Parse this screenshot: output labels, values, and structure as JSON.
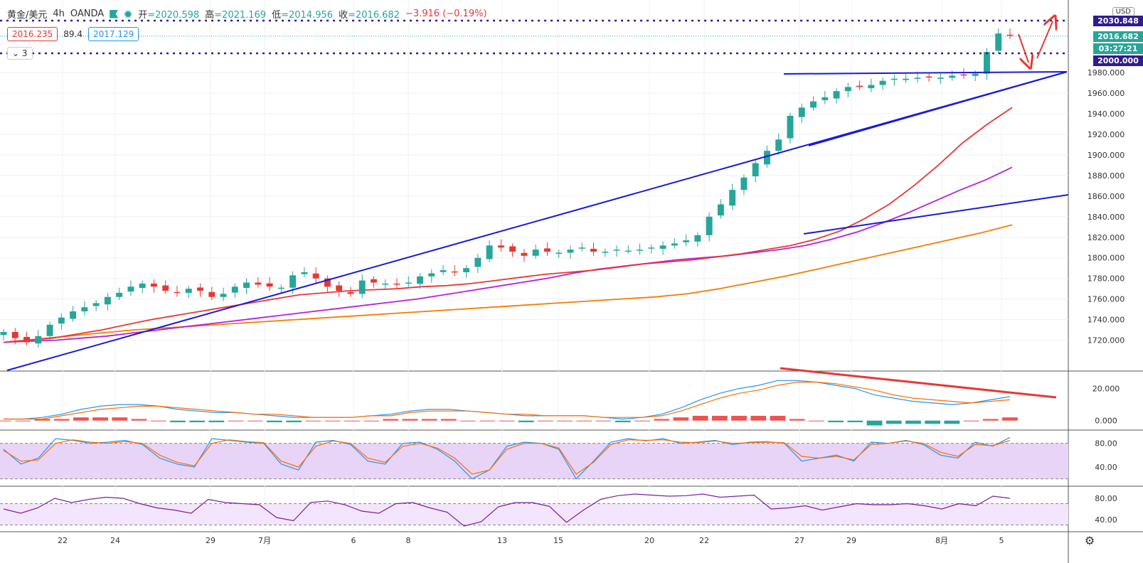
{
  "header": {
    "symbol": "黄金/美元",
    "interval": "4h",
    "broker": "OANDA",
    "open_label": "开",
    "open": "=2020.598",
    "high_label": "高",
    "high": "=2021.169",
    "low_label": "低",
    "low": "=2014.956",
    "close_label": "收",
    "close": "=2016.682",
    "change": "−3.916 (−0.19%)",
    "sell_price": "2016.235",
    "spread": "89.4",
    "buy_price": "2017.129",
    "indicator_count": "3"
  },
  "price_labels": {
    "currency": "USD",
    "top_level": "2030.848",
    "last_price": "2016.682",
    "countdown": "03:27:21",
    "bottom_level": "2000.000"
  },
  "colors": {
    "up": "#26a69a",
    "down": "#e53935",
    "trendline": "#1a1adb",
    "ma_fast": "#e53935",
    "ma_mid": "#b620e0",
    "ma_slow": "#f57c00",
    "level_line": "#311b92"
  },
  "chart_data": [
    {
      "type": "candlestick",
      "name_label": "黄金/美元 4h OANDA",
      "y_ticks": [
        1720,
        1740,
        1760,
        1780,
        1800,
        1820,
        1840,
        1860,
        1880,
        1900,
        1920,
        1940,
        1960,
        1980
      ],
      "y_tick_labels": [
        "1720.000",
        "1740.000",
        "1760.000",
        "1780.000",
        "1800.000",
        "1820.000",
        "1840.000",
        "1860.000",
        "1880.000",
        "1900.000",
        "1920.000",
        "1940.000",
        "1960.000",
        "1980.000"
      ],
      "ylim": [
        1690,
        2045
      ],
      "x_tick_labels": [
        "22",
        "24",
        "29",
        "7月",
        "6",
        "8",
        "13",
        "15",
        "20",
        "22",
        "27",
        "29",
        "8月",
        "5"
      ],
      "candles_close": [
        1728,
        1722,
        1718,
        1724,
        1735,
        1742,
        1748,
        1752,
        1756,
        1762,
        1766,
        1772,
        1775,
        1772,
        1768,
        1766,
        1770,
        1768,
        1762,
        1765,
        1772,
        1776,
        1774,
        1772,
        1771,
        1783,
        1786,
        1780,
        1772,
        1768,
        1765,
        1778,
        1776,
        1775,
        1774,
        1776,
        1782,
        1785,
        1788,
        1786,
        1790,
        1800,
        1812,
        1810,
        1806,
        1802,
        1808,
        1806,
        1805,
        1808,
        1810,
        1806,
        1806,
        1808,
        1807,
        1808,
        1810,
        1812,
        1814,
        1817,
        1822,
        1840,
        1852,
        1866,
        1878,
        1892,
        1904,
        1915,
        1938,
        1946,
        1952,
        1956,
        1962,
        1966,
        1966,
        1968,
        1972,
        1974,
        1974,
        1975,
        1976,
        1975,
        1977,
        1978,
        1979,
        2000,
        2018,
        2016.682
      ],
      "ma_fast": [
        1718,
        1720,
        1722,
        1726,
        1730,
        1735,
        1740,
        1744,
        1748,
        1752,
        1756,
        1760,
        1764,
        1766,
        1768,
        1769,
        1770,
        1772,
        1773,
        1775,
        1778,
        1781,
        1784,
        1786,
        1788,
        1791,
        1794,
        1796,
        1798,
        1801,
        1804,
        1808,
        1812,
        1818,
        1826,
        1838,
        1852,
        1870,
        1890,
        1912,
        1930,
        1946
      ],
      "ma_mid": [
        1718,
        1719,
        1720,
        1722,
        1724,
        1727,
        1730,
        1733,
        1736,
        1739,
        1742,
        1745,
        1748,
        1751,
        1754,
        1757,
        1760,
        1764,
        1768,
        1772,
        1776,
        1780,
        1785,
        1789,
        1792,
        1795,
        1798,
        1800,
        1802,
        1805,
        1808,
        1812,
        1818,
        1825,
        1834,
        1844,
        1855,
        1866,
        1876,
        1888
      ],
      "ma_slow": [
        1718,
        1721,
        1724,
        1727,
        1730,
        1732,
        1734,
        1736,
        1738,
        1740,
        1742,
        1744,
        1746,
        1748,
        1750,
        1752,
        1754,
        1756,
        1758,
        1760,
        1762,
        1765,
        1770,
        1776,
        1782,
        1789,
        1796,
        1803,
        1810,
        1817,
        1824,
        1832
      ]
    },
    {
      "type": "macd",
      "y_tick_labels": [
        "20.000",
        "0.000"
      ],
      "ylim": [
        -5,
        30
      ],
      "macd": [
        1,
        1,
        2,
        4,
        7,
        9,
        10,
        10,
        9,
        7,
        6,
        5,
        5,
        4,
        3,
        2,
        2,
        2,
        2,
        3,
        4,
        6,
        7,
        7,
        6,
        5,
        4,
        3,
        3,
        3,
        3,
        2,
        1,
        2,
        4,
        8,
        13,
        17,
        20,
        22,
        25,
        25,
        24,
        22,
        20,
        16,
        14,
        12,
        11,
        10,
        11,
        13,
        15
      ],
      "signal": [
        1,
        1,
        1,
        3,
        5,
        7,
        8,
        9,
        9,
        8,
        7,
        6,
        5,
        4,
        4,
        3,
        2,
        2,
        2,
        3,
        3,
        5,
        6,
        6,
        6,
        5,
        4,
        4,
        3,
        3,
        3,
        2,
        2,
        2,
        3,
        6,
        10,
        14,
        17,
        19,
        22,
        24,
        24,
        23,
        21,
        19,
        16,
        14,
        13,
        12,
        11,
        12,
        13
      ],
      "histogram": [
        0,
        0,
        1,
        1,
        2,
        2,
        2,
        1,
        0,
        -1,
        -1,
        -1,
        0,
        0,
        -1,
        -1,
        0,
        0,
        0,
        0,
        1,
        1,
        1,
        1,
        0,
        0,
        0,
        -1,
        0,
        0,
        0,
        0,
        -1,
        0,
        1,
        2,
        3,
        3,
        3,
        3,
        3,
        1,
        0,
        -1,
        -1,
        -3,
        -2,
        -2,
        -2,
        -2,
        0,
        1,
        2
      ]
    },
    {
      "type": "stochastic",
      "y_tick_labels": [
        "80.00",
        "40.00"
      ],
      "ylim": [
        10,
        100
      ],
      "k": [
        70,
        45,
        55,
        88,
        85,
        80,
        82,
        85,
        78,
        55,
        45,
        40,
        88,
        85,
        82,
        80,
        45,
        35,
        82,
        85,
        78,
        50,
        45,
        80,
        82,
        70,
        50,
        20,
        35,
        75,
        82,
        80,
        70,
        20,
        50,
        82,
        88,
        84,
        88,
        80,
        82,
        85,
        78,
        82,
        83,
        80,
        50,
        55,
        60,
        50,
        82,
        80,
        85,
        78,
        60,
        55,
        82,
        75,
        90
      ],
      "d": [
        68,
        50,
        52,
        80,
        86,
        82,
        80,
        83,
        80,
        60,
        48,
        42,
        80,
        86,
        83,
        81,
        50,
        40,
        75,
        84,
        80,
        55,
        48,
        75,
        80,
        72,
        55,
        28,
        35,
        70,
        80,
        80,
        72,
        28,
        48,
        78,
        86,
        85,
        86,
        82,
        81,
        84,
        80,
        81,
        82,
        81,
        58,
        55,
        58,
        52,
        78,
        80,
        84,
        80,
        65,
        58,
        78,
        76,
        85
      ]
    },
    {
      "type": "rsi",
      "y_tick_labels": [
        "80.00",
        "40.00"
      ],
      "ylim": [
        20,
        100
      ],
      "values": [
        60,
        52,
        62,
        80,
        72,
        78,
        82,
        80,
        70,
        62,
        58,
        52,
        78,
        72,
        70,
        68,
        44,
        38,
        72,
        75,
        68,
        56,
        52,
        70,
        72,
        62,
        54,
        28,
        36,
        64,
        72,
        72,
        65,
        35,
        58,
        78,
        85,
        88,
        86,
        84,
        85,
        88,
        82,
        84,
        86,
        60,
        62,
        66,
        58,
        64,
        70,
        68,
        68,
        70,
        66,
        60,
        70,
        66,
        84,
        80
      ]
    }
  ]
}
